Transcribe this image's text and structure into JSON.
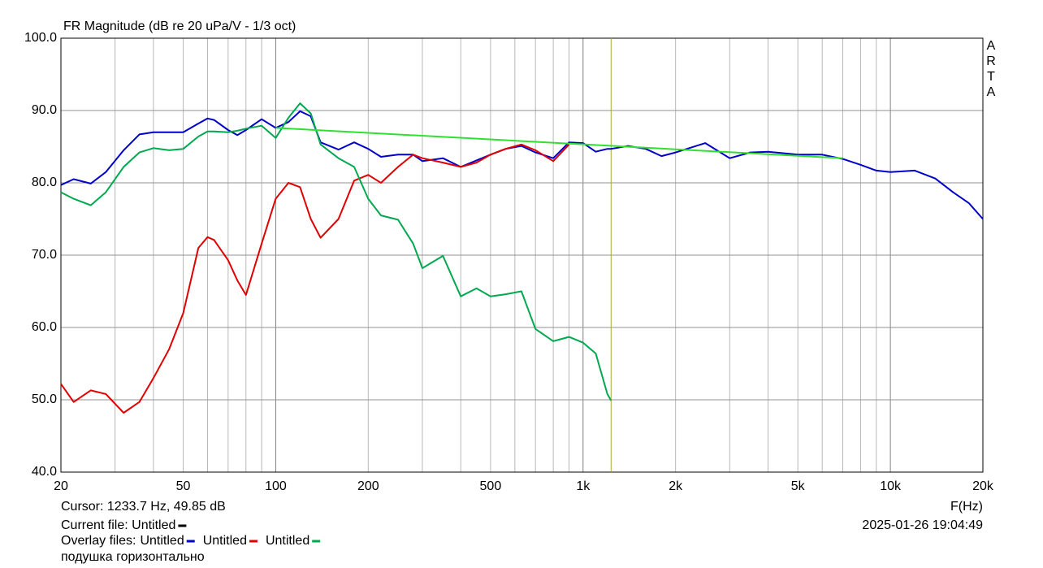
{
  "chart_data": {
    "type": "line",
    "title": "FR Magnitude (dB re 20 uPa/V - 1/3 oct)",
    "side_label": "ARTA",
    "xlabel": "F(Hz)",
    "xscale": "log",
    "xlim": [
      20,
      20000
    ],
    "ylim": [
      40,
      100
    ],
    "xticks": [
      20,
      50,
      100,
      200,
      500,
      {
        "value": 1000,
        "label": "1k"
      },
      {
        "value": 2000,
        "label": "2k"
      },
      {
        "value": 5000,
        "label": "5k"
      },
      {
        "value": 10000,
        "label": "10k"
      },
      {
        "value": 20000,
        "label": "20k"
      }
    ],
    "xgrid": [
      30,
      40,
      60,
      70,
      80,
      90,
      300,
      400,
      600,
      700,
      800,
      900,
      3000,
      4000,
      6000,
      7000,
      8000,
      9000
    ],
    "yticks": [
      {
        "value": 40,
        "label": "40.0"
      },
      {
        "value": 50,
        "label": "50.0"
      },
      {
        "value": 60,
        "label": "60.0"
      },
      {
        "value": 70,
        "label": "70.0"
      },
      {
        "value": 80,
        "label": "80.0"
      },
      {
        "value": 90,
        "label": "90.0"
      },
      {
        "value": 100,
        "label": "100.0"
      }
    ],
    "grid": true,
    "cursor": {
      "label": "Cursor: 1233.7 Hz, 49.85 dB",
      "x": 1233.7,
      "color": "#a8a830"
    },
    "current_file": {
      "label": "Current file: Untitled",
      "color": "#000000"
    },
    "overlay_label": "Overlay files:",
    "timestamp": "2025-01-26  19:04:49",
    "note": "подушка горизонтально",
    "x": [
      20,
      22,
      25,
      28,
      32,
      36,
      40,
      45,
      50,
      56,
      60,
      63,
      70,
      75,
      80,
      90,
      100,
      110,
      120,
      130,
      140,
      160,
      180,
      200,
      220,
      250,
      280,
      300,
      350,
      400,
      450,
      500,
      560,
      630,
      700,
      800,
      900,
      1000,
      1100,
      1200,
      1234,
      1400,
      1600,
      1800,
      2000,
      2500,
      3000,
      3500,
      4000,
      5000,
      6000,
      7000,
      8000,
      9000,
      10000,
      12000,
      14000,
      16000,
      18000,
      20000
    ],
    "series": [
      {
        "name": "Untitled",
        "color": "#0000c8",
        "values": [
          79.7,
          80.5,
          79.9,
          81.5,
          84.5,
          86.7,
          87,
          87,
          87,
          88.2,
          88.9,
          88.7,
          87.3,
          86.6,
          87.3,
          88.8,
          87.6,
          88.4,
          89.9,
          89.2,
          85.6,
          84.6,
          85.6,
          84.7,
          83.6,
          83.9,
          83.9,
          83,
          83.4,
          82.2,
          83.1,
          83.9,
          84.7,
          85.1,
          84.2,
          83.4,
          85.6,
          85.5,
          84.3,
          84.7,
          84.7,
          85.1,
          84.7,
          83.7,
          84.2,
          85.5,
          83.4,
          84.2,
          84.3,
          83.9,
          83.9,
          83.3,
          82.5,
          81.7,
          81.5,
          81.7,
          80.6,
          78.7,
          77.2,
          75
        ]
      },
      {
        "name": "Untitled",
        "color": "#e00000",
        "values": [
          52.2,
          49.7,
          51.3,
          50.8,
          48.2,
          49.7,
          53,
          57,
          62,
          71,
          72.5,
          72.1,
          69.3,
          66.5,
          64.5,
          71.6,
          77.8,
          80,
          79.4,
          75,
          72.4,
          75,
          80.3,
          81.1,
          80,
          82.2,
          83.9,
          83.4,
          82.8,
          82.2,
          82.8,
          83.9,
          84.7,
          85.3,
          84.5,
          83,
          85.3,
          null,
          null,
          null,
          null,
          null,
          null,
          null,
          null,
          null,
          null,
          null,
          null,
          null,
          null,
          null,
          null,
          null,
          null,
          null,
          null,
          null,
          null,
          null
        ]
      },
      {
        "name": "Untitled",
        "color": "#00a850",
        "values": [
          78.7,
          77.8,
          76.9,
          78.7,
          82.2,
          84.2,
          84.8,
          84.5,
          84.7,
          86.4,
          87.1,
          87.1,
          87,
          87.2,
          87.5,
          87.9,
          86.2,
          89,
          91,
          89.6,
          85.3,
          83.4,
          82.2,
          77.8,
          75.5,
          74.9,
          71.6,
          68.2,
          69.9,
          64.3,
          65.4,
          64.3,
          64.6,
          65,
          59.8,
          58.1,
          58.7,
          57.9,
          56.4,
          50.8,
          49.9,
          null,
          null,
          null,
          null,
          null,
          null,
          null,
          null,
          null,
          null,
          null,
          null,
          null,
          null,
          null,
          null,
          null,
          null,
          null
        ]
      },
      {
        "color": "#30e030",
        "x": [
          100,
          7000
        ],
        "values": [
          87.6,
          83.4
        ]
      }
    ]
  }
}
